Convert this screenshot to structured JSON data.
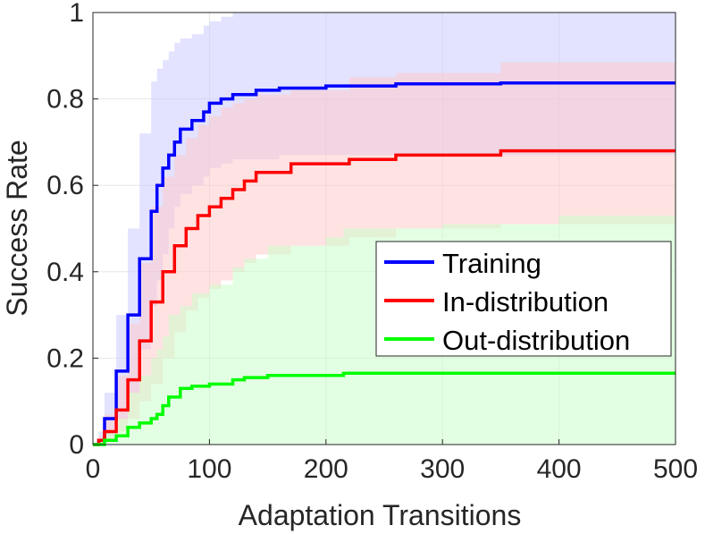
{
  "chart_data": {
    "type": "line",
    "xlabel": "Adaptation Transitions",
    "ylabel": "Success Rate",
    "xlim": [
      0,
      500
    ],
    "ylim": [
      0,
      1
    ],
    "xticks": [
      0,
      100,
      200,
      300,
      400,
      500
    ],
    "yticks": [
      0,
      0.2,
      0.4,
      0.6,
      0.8,
      1
    ],
    "xtick_labels": [
      "0",
      "100",
      "200",
      "300",
      "400",
      "500"
    ],
    "ytick_labels": [
      "0",
      "0.2",
      "0.4",
      "0.6",
      "0.8",
      "1"
    ],
    "grid": true,
    "legend_position": "center-right",
    "series": [
      {
        "name": "Training",
        "color": "#0000ff",
        "band_color": "#c8c8ff",
        "x": [
          0,
          5,
          10,
          20,
          30,
          40,
          50,
          55,
          60,
          65,
          70,
          75,
          85,
          95,
          100,
          110,
          120,
          140,
          160,
          200,
          260,
          350,
          500
        ],
        "y": [
          0,
          0.01,
          0.06,
          0.17,
          0.3,
          0.43,
          0.54,
          0.6,
          0.64,
          0.67,
          0.7,
          0.73,
          0.75,
          0.77,
          0.79,
          0.8,
          0.81,
          0.82,
          0.825,
          0.83,
          0.835,
          0.837,
          0.837
        ],
        "upper": [
          0,
          0.03,
          0.12,
          0.3,
          0.5,
          0.72,
          0.84,
          0.87,
          0.89,
          0.91,
          0.93,
          0.94,
          0.95,
          0.97,
          0.98,
          0.99,
          1,
          1,
          1,
          1,
          1,
          1,
          1
        ],
        "lower": [
          0,
          0,
          0.02,
          0.06,
          0.12,
          0.22,
          0.32,
          0.38,
          0.44,
          0.5,
          0.55,
          0.58,
          0.6,
          0.62,
          0.64,
          0.65,
          0.66,
          0.66,
          0.67,
          0.67,
          0.67,
          0.67,
          0.67
        ]
      },
      {
        "name": "In-distribution",
        "color": "#ff0000",
        "band_color": "#ffc8c8",
        "x": [
          0,
          5,
          10,
          20,
          30,
          40,
          50,
          60,
          70,
          80,
          90,
          100,
          110,
          120,
          130,
          140,
          170,
          220,
          260,
          350,
          500
        ],
        "y": [
          0,
          0.01,
          0.03,
          0.08,
          0.15,
          0.24,
          0.33,
          0.4,
          0.46,
          0.5,
          0.53,
          0.55,
          0.57,
          0.59,
          0.61,
          0.63,
          0.65,
          0.66,
          0.67,
          0.68,
          0.68
        ],
        "upper": [
          0,
          0.02,
          0.07,
          0.16,
          0.28,
          0.42,
          0.55,
          0.62,
          0.67,
          0.71,
          0.74,
          0.76,
          0.78,
          0.79,
          0.8,
          0.81,
          0.82,
          0.85,
          0.86,
          0.885,
          0.885
        ],
        "lower": [
          0,
          0,
          0.01,
          0.03,
          0.06,
          0.1,
          0.14,
          0.2,
          0.26,
          0.31,
          0.34,
          0.36,
          0.38,
          0.4,
          0.42,
          0.44,
          0.46,
          0.48,
          0.5,
          0.51,
          0.51
        ]
      },
      {
        "name": "Out-distribution",
        "color": "#00ff00",
        "band_color": "#c8ffc8",
        "x": [
          0,
          10,
          20,
          30,
          40,
          50,
          55,
          60,
          65,
          75,
          85,
          100,
          120,
          130,
          150,
          200,
          215,
          300,
          400,
          500
        ],
        "y": [
          0,
          0.01,
          0.02,
          0.04,
          0.05,
          0.06,
          0.07,
          0.09,
          0.11,
          0.13,
          0.135,
          0.14,
          0.15,
          0.155,
          0.16,
          0.16,
          0.165,
          0.165,
          0.165,
          0.165
        ],
        "upper": [
          0,
          0.03,
          0.06,
          0.12,
          0.16,
          0.2,
          0.22,
          0.25,
          0.3,
          0.32,
          0.35,
          0.37,
          0.41,
          0.43,
          0.46,
          0.48,
          0.5,
          0.51,
          0.53,
          0.54
        ],
        "lower": [
          0,
          0,
          0,
          0,
          0,
          0,
          0,
          0,
          0,
          0,
          0,
          0,
          0,
          0,
          0,
          0,
          0,
          0,
          0,
          0
        ]
      }
    ]
  }
}
